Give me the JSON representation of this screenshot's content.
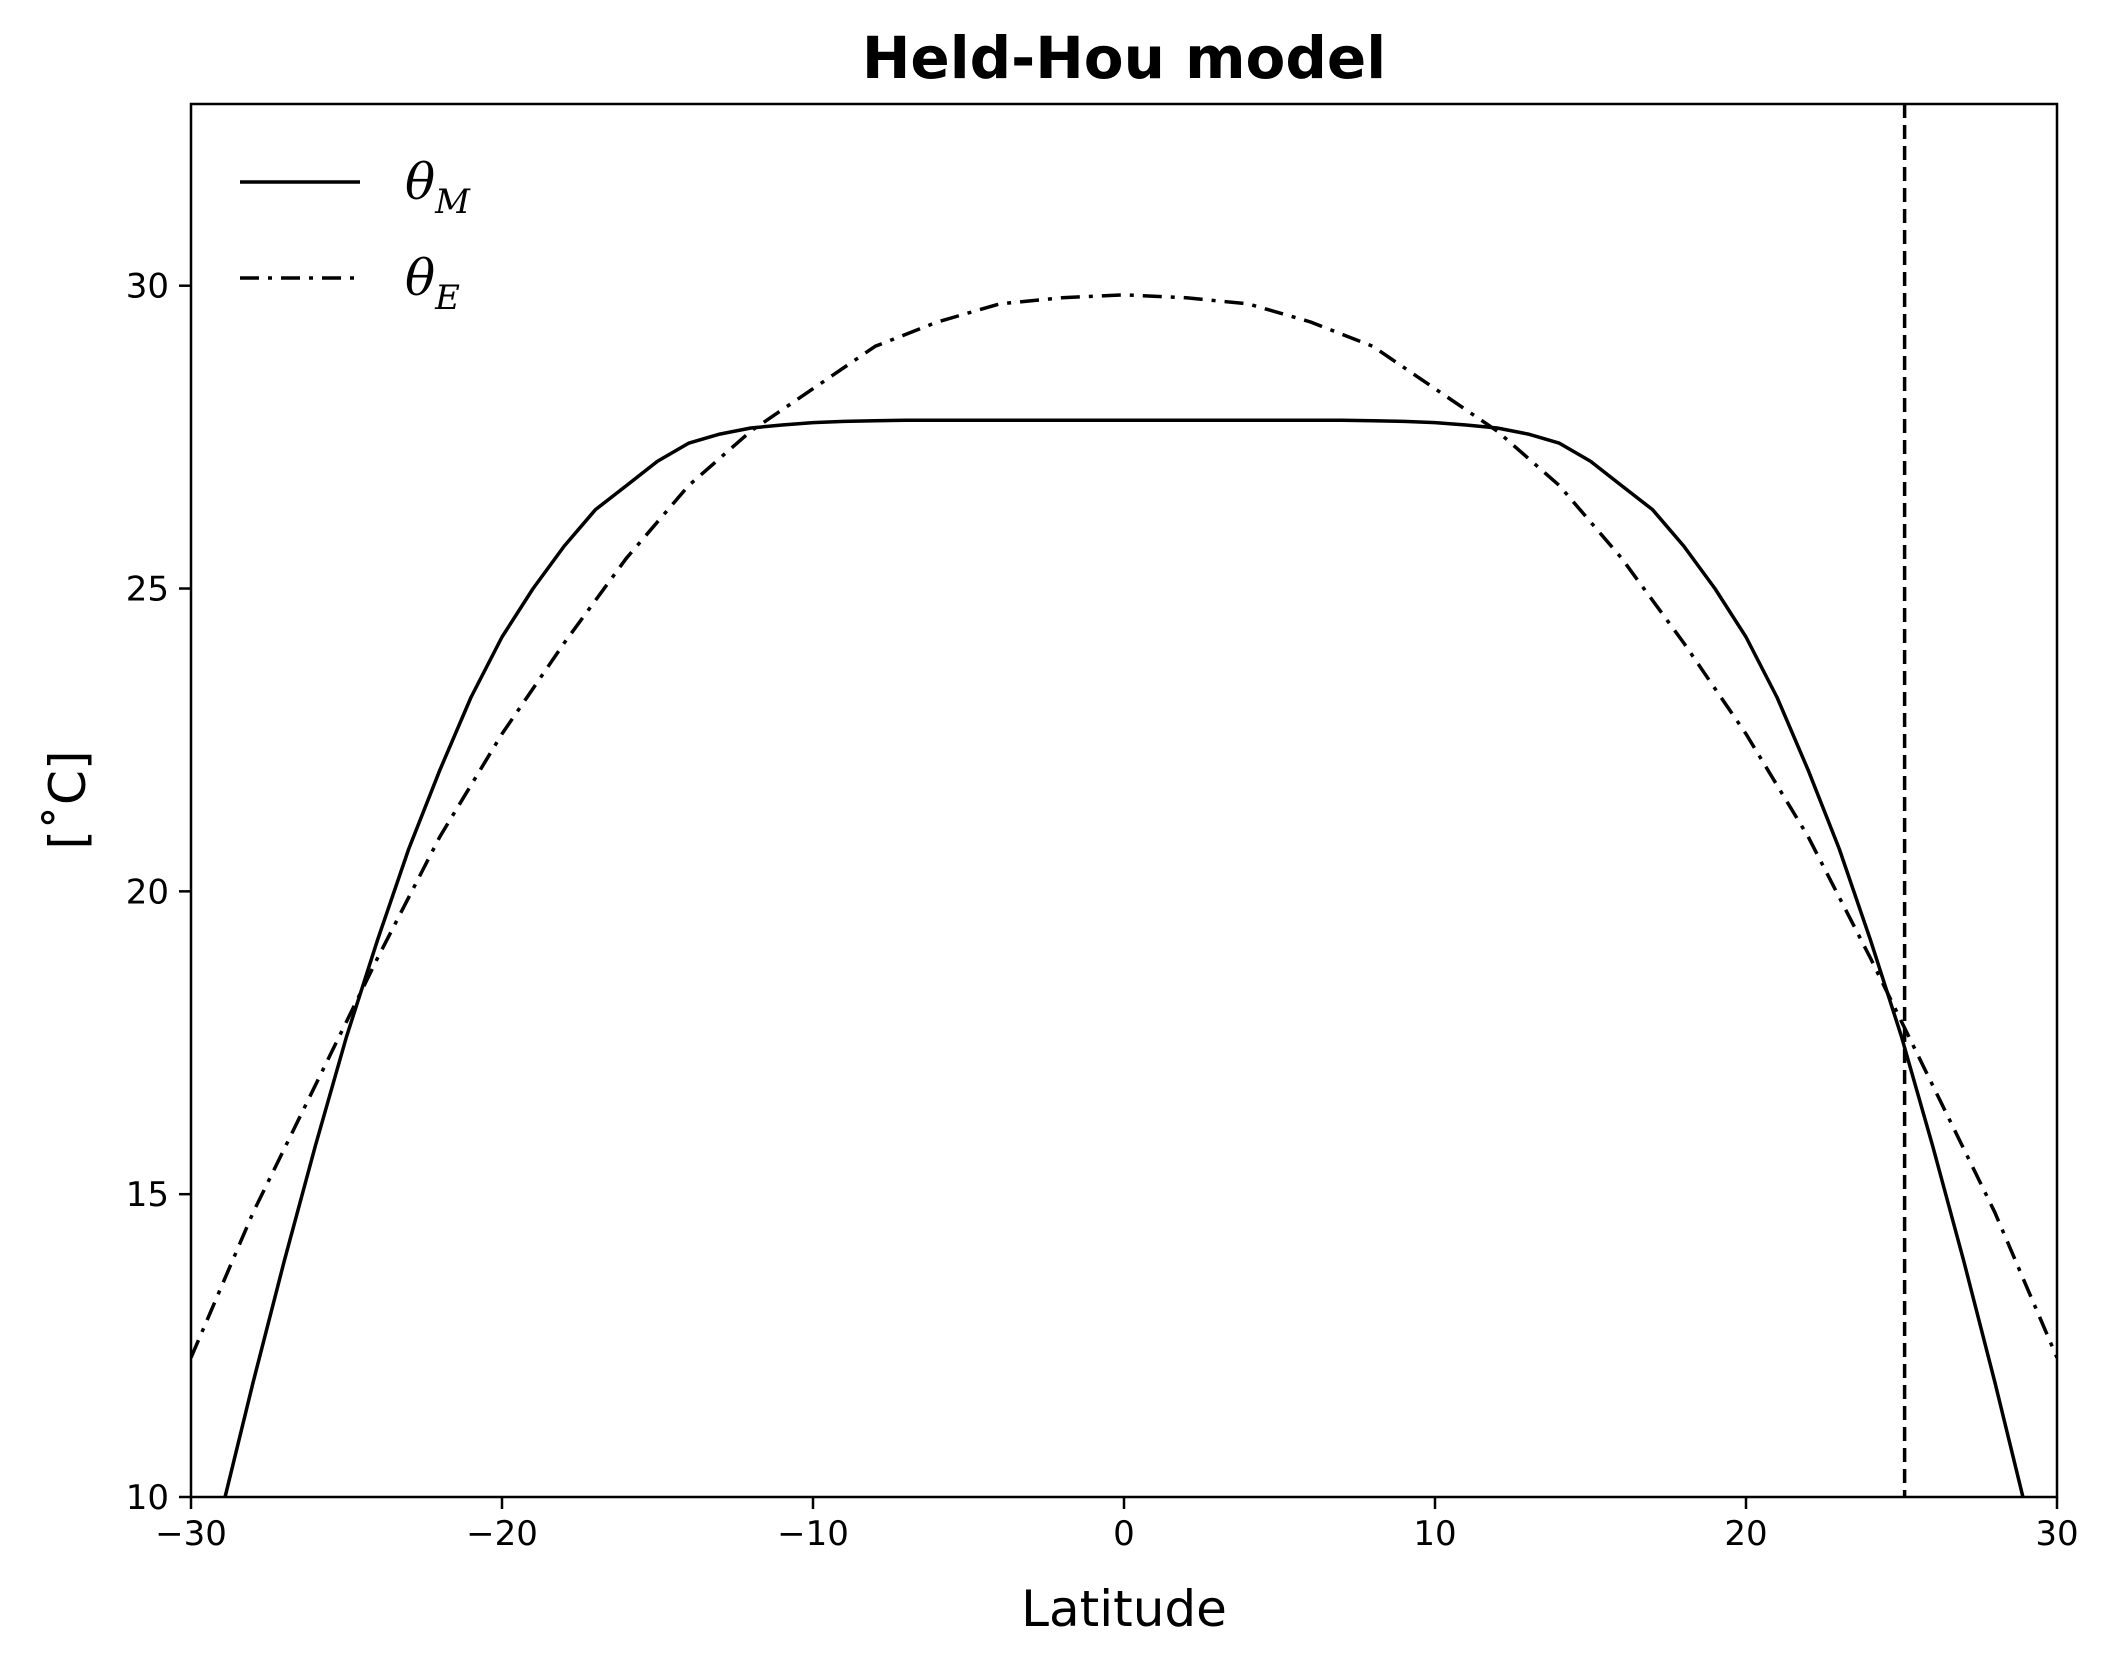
{
  "chart_data": {
    "type": "line",
    "title": "Held-Hou model",
    "xlabel": "Latitude",
    "ylabel": "[˚C]",
    "xlim": [
      -30,
      30
    ],
    "ylim": [
      10,
      33
    ],
    "xticks": [
      -30,
      -20,
      -10,
      0,
      10,
      20,
      30
    ],
    "xtick_labels": [
      "−30",
      "−20",
      "−10",
      "0",
      "10",
      "20",
      "30"
    ],
    "yticks": [
      10,
      15,
      20,
      25,
      30
    ],
    "ytick_labels": [
      "10",
      "15",
      "20",
      "25",
      "30"
    ],
    "grid": false,
    "legend_placement": "top-left",
    "series": [
      {
        "name": "θ_M",
        "label_main": "θ",
        "label_sub": "M",
        "style": "solid",
        "x": [
          -30,
          -29,
          -28,
          -27,
          -26,
          -25,
          -24,
          -23,
          -22,
          -21,
          -20,
          -19,
          -18,
          -17,
          -16,
          -15,
          -14,
          -13,
          -12,
          -11,
          -10,
          -9,
          -8,
          -7,
          -6,
          -5,
          -4,
          -3,
          -2,
          -1,
          0,
          1,
          2,
          3,
          4,
          5,
          6,
          7,
          8,
          9,
          10,
          11,
          12,
          13,
          14,
          15,
          16,
          17,
          18,
          19,
          20,
          21,
          22,
          23,
          24,
          25,
          26,
          27,
          28,
          29,
          30
        ],
        "y": [
          7.6,
          9.8,
          11.9,
          13.9,
          15.8,
          17.6,
          19.2,
          20.7,
          22.0,
          23.2,
          24.2,
          25.0,
          25.7,
          26.3,
          26.7,
          27.1,
          27.4,
          27.55,
          27.65,
          27.7,
          27.74,
          27.76,
          27.77,
          27.78,
          27.78,
          27.78,
          27.78,
          27.78,
          27.78,
          27.78,
          27.78,
          27.78,
          27.78,
          27.78,
          27.78,
          27.78,
          27.78,
          27.78,
          27.77,
          27.76,
          27.74,
          27.7,
          27.65,
          27.55,
          27.4,
          27.1,
          26.7,
          26.3,
          25.7,
          25.0,
          24.2,
          23.2,
          22.0,
          20.7,
          19.2,
          17.6,
          15.8,
          13.9,
          11.9,
          9.8,
          7.6
        ],
        "color": "#000000"
      },
      {
        "name": "θ_E",
        "label_main": "θ",
        "label_sub": "E",
        "style": "dashdot",
        "x": [
          -30,
          -28,
          -26,
          -24,
          -22,
          -20,
          -18,
          -16,
          -14,
          -12,
          -10,
          -8,
          -6,
          -4,
          -2,
          0,
          2,
          4,
          6,
          8,
          10,
          12,
          14,
          16,
          18,
          20,
          22,
          24,
          26,
          28,
          30
        ],
        "y": [
          12.3,
          14.7,
          16.8,
          18.9,
          20.9,
          22.6,
          24.1,
          25.5,
          26.7,
          27.6,
          28.3,
          29.0,
          29.4,
          29.7,
          29.8,
          29.85,
          29.8,
          29.7,
          29.4,
          29.0,
          28.3,
          27.6,
          26.7,
          25.5,
          24.1,
          22.6,
          20.9,
          18.9,
          16.8,
          14.7,
          12.3
        ],
        "color": "#000000"
      }
    ],
    "vertical_line": {
      "x": 25.1,
      "style": "dashed",
      "color": "#000000"
    }
  }
}
